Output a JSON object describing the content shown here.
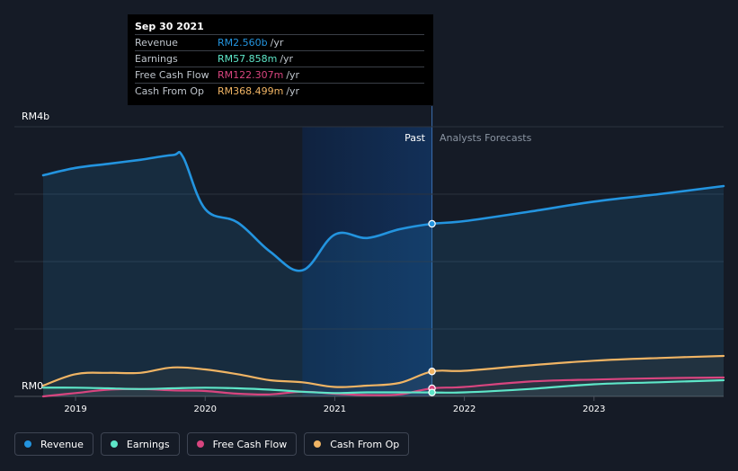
{
  "colors": {
    "revenue": "#2394df",
    "earnings": "#5ee6c8",
    "free_cash_flow": "#d8457f",
    "cash_from_op": "#f0b464"
  },
  "tooltip": {
    "date": "Sep 30 2021",
    "rows": [
      {
        "name": "Revenue",
        "value": "RM2.560b",
        "unit": "/yr",
        "color": "#2394df"
      },
      {
        "name": "Earnings",
        "value": "RM57.858m",
        "unit": "/yr",
        "color": "#5ee6c8"
      },
      {
        "name": "Free Cash Flow",
        "value": "RM122.307m",
        "unit": "/yr",
        "color": "#d8457f"
      },
      {
        "name": "Cash From Op",
        "value": "RM368.499m",
        "unit": "/yr",
        "color": "#f0b464"
      }
    ]
  },
  "legend": [
    {
      "label": "Revenue",
      "color": "#2394df"
    },
    {
      "label": "Earnings",
      "color": "#5ee6c8"
    },
    {
      "label": "Free Cash Flow",
      "color": "#d8457f"
    },
    {
      "label": "Cash From Op",
      "color": "#f0b464"
    }
  ],
  "chart_data": {
    "type": "line",
    "title": "",
    "y_top_label": "RM4b",
    "y_bottom_label": "RM0",
    "ylim": [
      0,
      4.0
    ],
    "xlim": [
      2018.75,
      2024.0
    ],
    "x_ticks": [
      {
        "value": 2019.0,
        "label": "2019"
      },
      {
        "value": 2020.0,
        "label": "2020"
      },
      {
        "value": 2021.0,
        "label": "2021"
      },
      {
        "value": 2022.0,
        "label": "2022"
      },
      {
        "value": 2023.0,
        "label": "2023"
      }
    ],
    "past_label": "Past",
    "forecast_label": "Analysts Forecasts",
    "highlight_start": 2020.75,
    "divider": 2021.75,
    "series": [
      {
        "name": "Revenue",
        "key": "revenue",
        "fill": true,
        "x": [
          2018.75,
          2019.0,
          2019.25,
          2019.5,
          2019.75,
          2019.83,
          2020.0,
          2020.25,
          2020.5,
          2020.75,
          2021.0,
          2021.25,
          2021.5,
          2021.75,
          2022.0,
          2022.5,
          2023.0,
          2023.5,
          2024.0
        ],
        "y": [
          3.28,
          3.39,
          3.45,
          3.51,
          3.58,
          3.55,
          2.78,
          2.58,
          2.15,
          1.87,
          2.4,
          2.35,
          2.48,
          2.56,
          2.6,
          2.74,
          2.89,
          3.0,
          3.12
        ]
      },
      {
        "name": "Cash From Op",
        "key": "cash_from_op",
        "fill": false,
        "x": [
          2018.75,
          2019.0,
          2019.25,
          2019.5,
          2019.75,
          2020.0,
          2020.25,
          2020.5,
          2020.75,
          2021.0,
          2021.25,
          2021.5,
          2021.75,
          2022.0,
          2022.5,
          2023.0,
          2023.5,
          2024.0
        ],
        "y": [
          0.16,
          0.33,
          0.35,
          0.35,
          0.43,
          0.4,
          0.33,
          0.24,
          0.21,
          0.14,
          0.16,
          0.2,
          0.37,
          0.38,
          0.46,
          0.53,
          0.57,
          0.6
        ]
      },
      {
        "name": "Free Cash Flow",
        "key": "free_cash_flow",
        "fill": false,
        "x": [
          2018.75,
          2019.0,
          2019.25,
          2019.5,
          2019.75,
          2020.0,
          2020.25,
          2020.5,
          2020.75,
          2021.0,
          2021.25,
          2021.5,
          2021.75,
          2022.0,
          2022.5,
          2023.0,
          2023.5,
          2024.0
        ],
        "y": [
          0.0,
          0.05,
          0.1,
          0.11,
          0.09,
          0.08,
          0.04,
          0.03,
          0.07,
          0.04,
          0.02,
          0.03,
          0.12,
          0.14,
          0.22,
          0.25,
          0.27,
          0.28
        ]
      },
      {
        "name": "Earnings",
        "key": "earnings",
        "fill": false,
        "x": [
          2018.75,
          2019.0,
          2019.25,
          2019.5,
          2019.75,
          2020.0,
          2020.25,
          2020.5,
          2020.75,
          2021.0,
          2021.25,
          2021.5,
          2021.75,
          2022.0,
          2022.5,
          2023.0,
          2023.5,
          2024.0
        ],
        "y": [
          0.13,
          0.13,
          0.12,
          0.11,
          0.12,
          0.13,
          0.12,
          0.1,
          0.07,
          0.05,
          0.06,
          0.06,
          0.058,
          0.06,
          0.11,
          0.18,
          0.21,
          0.24
        ]
      }
    ]
  }
}
